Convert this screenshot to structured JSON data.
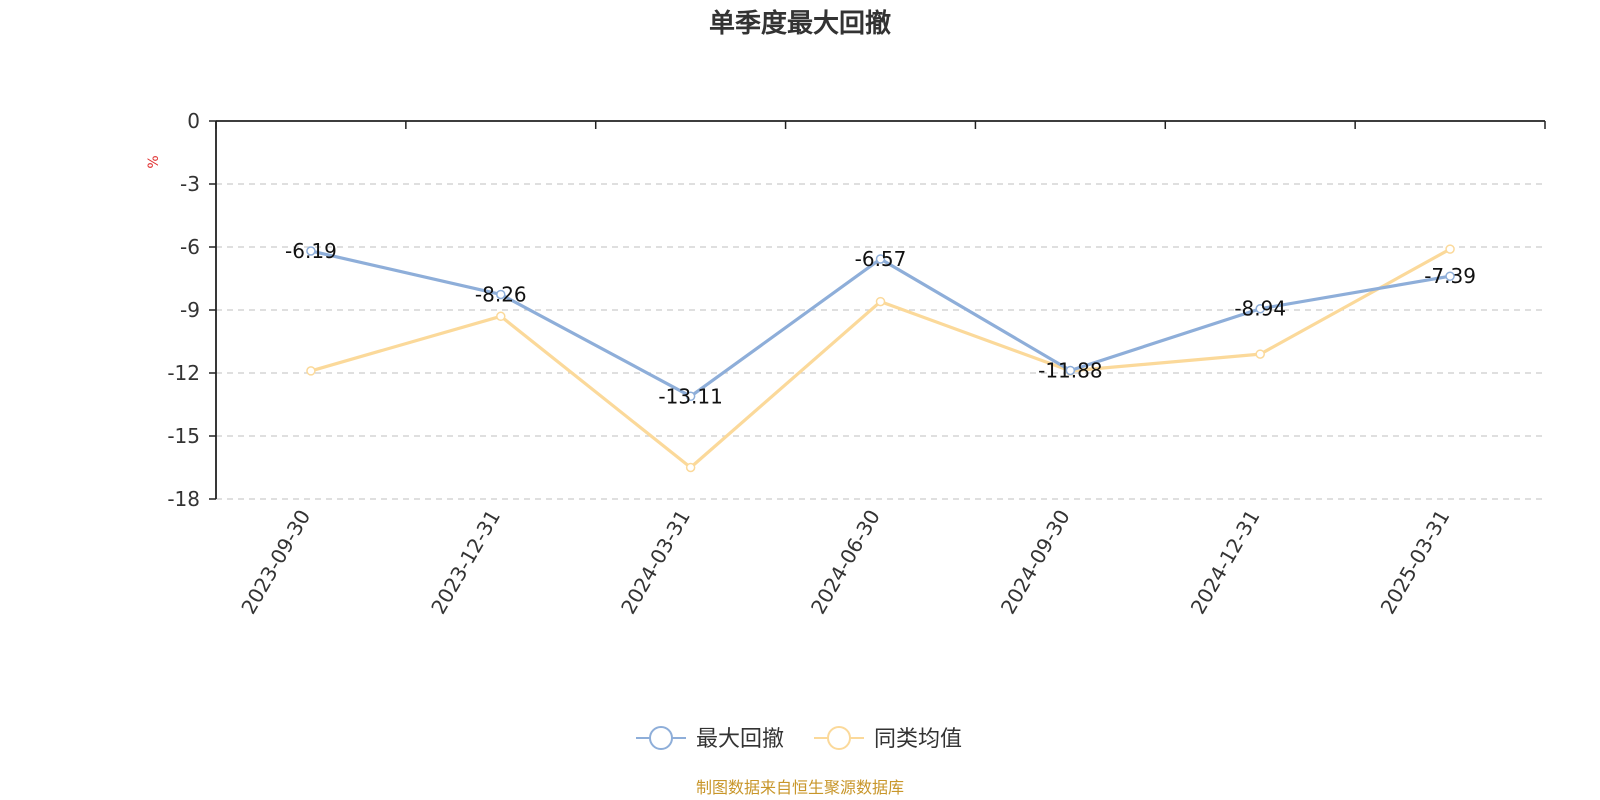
{
  "chart_data": {
    "type": "line",
    "title": "单季度最大回撤",
    "ylabel": "%",
    "categories": [
      "2023-09-30",
      "2023-12-31",
      "2024-03-31",
      "2024-06-30",
      "2024-09-30",
      "2024-12-31",
      "2025-03-31"
    ],
    "series": [
      {
        "name": "最大回撤",
        "color": "#8eaed9",
        "values": [
          -6.19,
          -8.26,
          -13.11,
          -6.57,
          -11.88,
          -8.94,
          -7.39
        ],
        "data_labels": [
          "-6.19",
          "-8.26",
          "-13.11",
          "-6.57",
          "-11.88",
          "-8.94",
          "-7.39"
        ]
      },
      {
        "name": "同类均值",
        "color": "#fbd99a",
        "values": [
          -11.9,
          -9.3,
          -16.5,
          -8.6,
          -11.9,
          -11.1,
          -6.1
        ]
      }
    ],
    "ylim": [
      -18,
      0
    ],
    "yticks": [
      0,
      -3,
      -6,
      -9,
      -12,
      -15,
      -18
    ],
    "grid": true,
    "legend_position": "bottom-center"
  },
  "source": {
    "text": "制图数据来自恒生聚源数据库",
    "color": "#c8962a"
  },
  "styles": {
    "unit_color": "#e03030",
    "axis_color": "#222222",
    "grid_color": "#cccccc"
  }
}
